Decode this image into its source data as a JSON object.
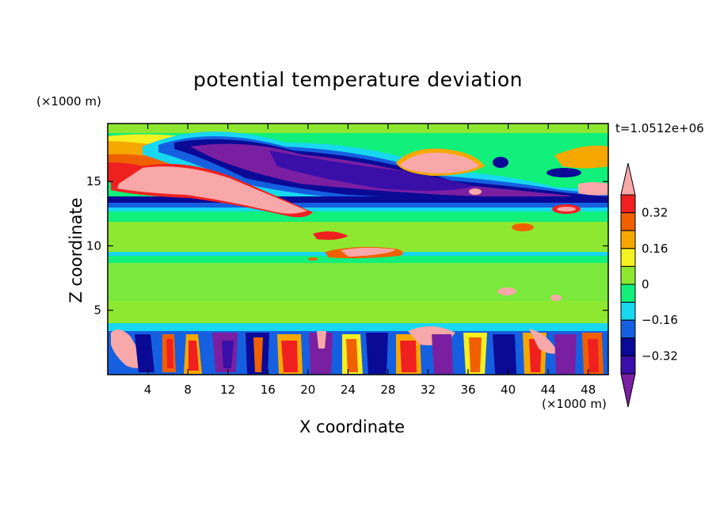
{
  "chart_data": {
    "type": "heatmap",
    "title": "potential temperature deviation",
    "xlabel": "X coordinate",
    "ylabel": "Z coordinate",
    "x_units": "(×1000 m)",
    "z_units": "(×1000 m)",
    "time_label": "t=1.0512e+06",
    "xlim": [
      0,
      50
    ],
    "ylim": [
      0,
      19.5
    ],
    "x_ticks": [
      "4",
      "8",
      "12",
      "16",
      "20",
      "24",
      "28",
      "32",
      "36",
      "40",
      "44",
      "48"
    ],
    "y_ticks": [
      "5",
      "10",
      "15"
    ],
    "colorbar": {
      "levels": [
        -0.4,
        -0.32,
        -0.24,
        -0.16,
        -0.08,
        0,
        0.08,
        0.16,
        0.24,
        0.32,
        0.4
      ],
      "labels": [
        "0.32",
        "0.16",
        "0",
        "−0.16",
        "−0.32"
      ],
      "colors": [
        "#7b1fa2",
        "#3a0ea8",
        "#0a0a96",
        "#1560e0",
        "#18d8f0",
        "#10f07a",
        "#8ee830",
        "#f5f020",
        "#f7a800",
        "#f06000",
        "#f02020",
        "#f8a8a8"
      ],
      "extend": "both"
    },
    "background_value": 0.0,
    "features": [
      {
        "name": "upper-cold-band",
        "x": [
          8,
          45
        ],
        "z": [
          13.8,
          18.5
        ],
        "value": -0.45
      },
      {
        "name": "upper-warm-plume",
        "x": [
          0,
          21
        ],
        "z": [
          12.5,
          17.0
        ],
        "value": 0.45
      },
      {
        "name": "upper-warm-cell",
        "x": [
          28,
          38
        ],
        "z": [
          15.5,
          18.0
        ],
        "value": 0.45
      },
      {
        "name": "mid-warm-streaks",
        "x": [
          19,
          30
        ],
        "z": [
          9.0,
          11.5
        ],
        "value": 0.4
      },
      {
        "name": "lower-mixed-layer",
        "x": [
          0,
          50
        ],
        "z": [
          0,
          4
        ],
        "value": "alternating ±0.45"
      },
      {
        "name": "lower-warm-blob",
        "x": [
          0,
          6
        ],
        "z": [
          1,
          4
        ],
        "value": 0.45
      }
    ]
  }
}
